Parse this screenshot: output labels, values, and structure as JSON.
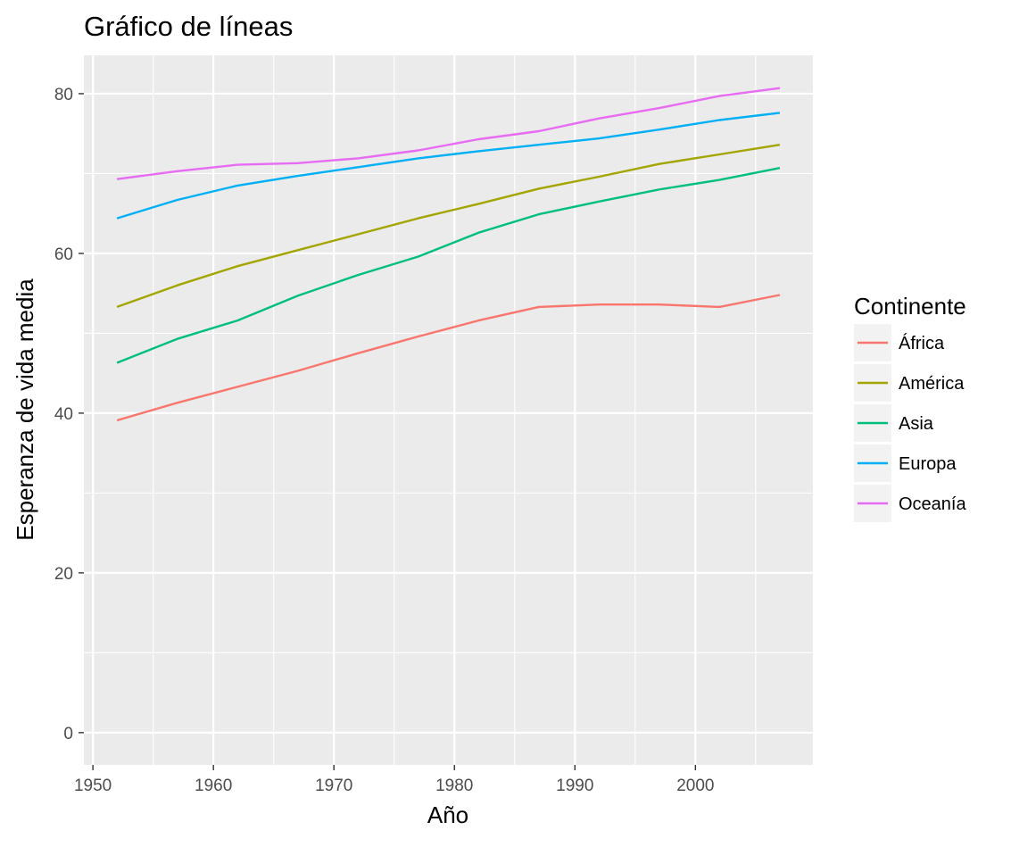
{
  "chart_data": {
    "type": "line",
    "title": "Gráfico de líneas",
    "xlabel": "Año",
    "ylabel": "Esperanza de vida media",
    "x": [
      1952,
      1957,
      1962,
      1967,
      1972,
      1977,
      1982,
      1987,
      1992,
      1997,
      2002,
      2007
    ],
    "xlim": [
      1949.25,
      2009.75
    ],
    "ylim": [
      -4.04,
      84.8
    ],
    "x_ticks": [
      1950,
      1960,
      1970,
      1980,
      1990,
      2000
    ],
    "y_ticks": [
      0,
      20,
      40,
      60,
      80
    ],
    "grid": true,
    "legend_title": "Continente",
    "legend_position": "right",
    "series": [
      {
        "name": "África",
        "color": "#F8766D",
        "values": [
          39.1,
          41.3,
          43.3,
          45.3,
          47.5,
          49.6,
          51.6,
          53.3,
          53.6,
          53.6,
          53.3,
          54.8
        ]
      },
      {
        "name": "América",
        "color": "#A3A500",
        "values": [
          53.3,
          56.0,
          58.4,
          60.4,
          62.4,
          64.4,
          66.2,
          68.1,
          69.6,
          71.2,
          72.4,
          73.6
        ]
      },
      {
        "name": "Asia",
        "color": "#00BF7D",
        "values": [
          46.3,
          49.3,
          51.6,
          54.7,
          57.3,
          59.6,
          62.6,
          64.9,
          66.5,
          68.0,
          69.2,
          70.7
        ]
      },
      {
        "name": "Europa",
        "color": "#00B0F6",
        "values": [
          64.4,
          66.7,
          68.5,
          69.7,
          70.8,
          71.9,
          72.8,
          73.6,
          74.4,
          75.5,
          76.7,
          77.6
        ]
      },
      {
        "name": "Oceanía",
        "color": "#E76BF3",
        "values": [
          69.3,
          70.3,
          71.1,
          71.3,
          71.9,
          72.9,
          74.3,
          75.3,
          76.9,
          78.2,
          79.7,
          80.7
        ]
      }
    ]
  }
}
